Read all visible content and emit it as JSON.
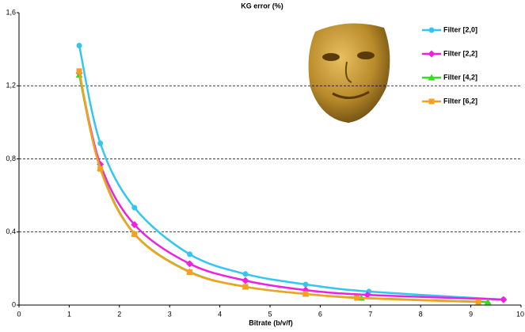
{
  "chart_data": {
    "type": "line",
    "title": "KG error (%)",
    "x_label": "Bitrate (b/v/f)",
    "xlim": [
      0,
      10
    ],
    "xticks": [
      0,
      1,
      2,
      3,
      4,
      5,
      6,
      7,
      8,
      9,
      10
    ],
    "ylim": [
      0,
      1.6
    ],
    "yticks": [
      0,
      {
        "value": 0.4,
        "label": "0,4"
      },
      {
        "value": 0.8,
        "label": "0,8"
      },
      {
        "value": 1.2,
        "label": "1,2"
      },
      {
        "value": 1.6,
        "label": "1,6"
      }
    ],
    "grid": true,
    "legend": "upper right",
    "series": [
      {
        "name": "Filter [2,0]",
        "color": "#33c6f0",
        "marker": "circle",
        "x": [
          1.2,
          1.62,
          2.3,
          3.4,
          4.51,
          5.71,
          6.97,
          9.65
        ],
        "values": [
          1.42,
          0.885,
          0.533,
          0.278,
          0.17,
          0.113,
          0.074,
          0.03
        ]
      },
      {
        "name": "Filter [2,2]",
        "color": "#f020e0",
        "marker": "diamond",
        "x": [
          1.2,
          1.62,
          2.3,
          3.4,
          4.51,
          5.71,
          6.94,
          9.65
        ],
        "values": [
          1.27,
          0.77,
          0.44,
          0.226,
          0.134,
          0.082,
          0.056,
          0.03
        ]
      },
      {
        "name": "Filter [4,2]",
        "color": "#33dd22",
        "marker": "triangle",
        "x": [
          1.2,
          1.62,
          2.3,
          3.4,
          4.51,
          5.71,
          6.82,
          9.34
        ],
        "values": [
          1.26,
          0.75,
          0.39,
          0.182,
          0.1,
          0.061,
          0.039,
          0.017
        ]
      },
      {
        "name": "Filter [6,2]",
        "color": "#f5a020",
        "marker": "square",
        "x": [
          1.2,
          1.62,
          2.3,
          3.4,
          4.51,
          5.71,
          6.73,
          9.15
        ],
        "values": [
          1.28,
          0.745,
          0.388,
          0.18,
          0.1,
          0.061,
          0.039,
          0.017
        ]
      }
    ]
  }
}
